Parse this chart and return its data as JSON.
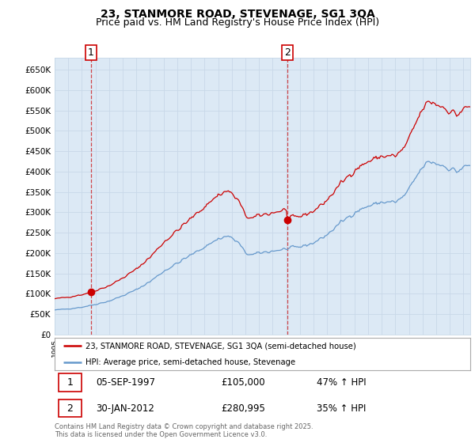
{
  "title": "23, STANMORE ROAD, STEVENAGE, SG1 3QA",
  "subtitle": "Price paid vs. HM Land Registry's House Price Index (HPI)",
  "ylabel_ticks": [
    "£0",
    "£50K",
    "£100K",
    "£150K",
    "£200K",
    "£250K",
    "£300K",
    "£350K",
    "£400K",
    "£450K",
    "£500K",
    "£550K",
    "£600K",
    "£650K"
  ],
  "ytick_values": [
    0,
    50000,
    100000,
    150000,
    200000,
    250000,
    300000,
    350000,
    400000,
    450000,
    500000,
    550000,
    600000,
    650000
  ],
  "ylim": [
    0,
    680000
  ],
  "sale1_date": "05-SEP-1997",
  "sale1_price": 105000,
  "sale2_date": "30-JAN-2012",
  "sale2_price": 280995,
  "sale1_pct": "47% ↑ HPI",
  "sale2_pct": "35% ↑ HPI",
  "sale1_x": 1997.67,
  "sale2_x": 2012.08,
  "line1_color": "#cc0000",
  "line2_color": "#6699cc",
  "grid_color": "#c8d8e8",
  "chart_bg": "#dce9f5",
  "background_color": "#ffffff",
  "legend_entry1": "23, STANMORE ROAD, STEVENAGE, SG1 3QA (semi-detached house)",
  "legend_entry2": "HPI: Average price, semi-detached house, Stevenage",
  "footnote": "Contains HM Land Registry data © Crown copyright and database right 2025.\nThis data is licensed under the Open Government Licence v3.0.",
  "xmin": 1995.0,
  "xmax": 2025.5,
  "title_fontsize": 10,
  "subtitle_fontsize": 9
}
